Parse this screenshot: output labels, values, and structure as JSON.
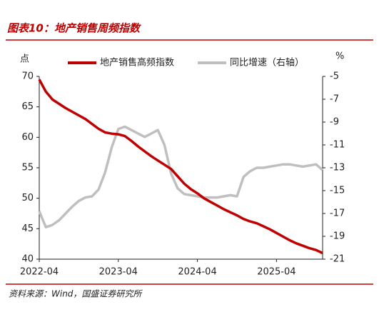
{
  "chart_data": {
    "type": "line",
    "title": "图表10：地产销售周频指数",
    "source": "资料来源：Wind，国盛证券研究所",
    "y_label": "点",
    "y2_label": "%",
    "x": [
      "2022-04",
      "2022-05",
      "2022-06",
      "2022-07",
      "2022-08",
      "2022-09",
      "2022-10",
      "2022-11",
      "2022-12",
      "2023-01",
      "2023-02",
      "2023-03",
      "2023-04",
      "2023-05",
      "2023-06",
      "2023-07",
      "2023-08",
      "2023-09",
      "2023-10",
      "2023-11",
      "2023-12",
      "2024-01",
      "2024-02",
      "2024-03",
      "2024-04",
      "2024-05",
      "2024-06",
      "2024-07",
      "2024-08",
      "2024-09",
      "2024-10",
      "2024-11",
      "2024-12",
      "2025-01",
      "2025-02",
      "2025-03",
      "2025-04",
      "2025-05",
      "2025-06",
      "2025-07",
      "2025-08",
      "2025-09",
      "2025-10",
      "2025-11"
    ],
    "xticks": [
      "2022-04",
      "2023-04",
      "2024-04",
      "2025-04"
    ],
    "ylim": [
      40,
      70
    ],
    "yticks": [
      40,
      45,
      50,
      55,
      60,
      65,
      70
    ],
    "y2lim": [
      -21,
      -5
    ],
    "y2ticks": [
      -21,
      -19,
      -17,
      -15,
      -13,
      -11,
      -9,
      -7,
      -5
    ],
    "series": [
      {
        "name": "地产销售高频指数",
        "color": "#c00000",
        "values": [
          69.5,
          67.5,
          66.2,
          65.5,
          64.8,
          64.2,
          63.6,
          63.0,
          62.2,
          61.4,
          60.8,
          60.6,
          60.5,
          60.2,
          59.4,
          58.5,
          57.7,
          56.9,
          56.2,
          55.5,
          54.8,
          53.6,
          52.4,
          51.5,
          50.8,
          50.0,
          49.4,
          48.8,
          48.2,
          47.7,
          47.2,
          46.6,
          46.2,
          45.9,
          45.4,
          44.9,
          44.3,
          43.7,
          43.1,
          42.6,
          42.2,
          41.8,
          41.5,
          41.0
        ]
      },
      {
        "name": "同比增速（右轴）",
        "color": "#bfbfbf",
        "axis": "y2",
        "values": [
          -16.8,
          -18.2,
          -18.0,
          -17.6,
          -17.0,
          -16.4,
          -15.9,
          -15.6,
          -15.5,
          -14.9,
          -13.4,
          -11.2,
          -9.6,
          -9.4,
          -9.7,
          -10.0,
          -10.3,
          -10.0,
          -9.7,
          -11.0,
          -13.5,
          -14.8,
          -15.3,
          -15.4,
          -15.5,
          -15.6,
          -15.6,
          -15.6,
          -15.5,
          -15.4,
          -15.5,
          -13.8,
          -13.3,
          -13.0,
          -13.0,
          -12.9,
          -12.8,
          -12.7,
          -12.7,
          -12.8,
          -12.9,
          -12.8,
          -12.7,
          -13.2
        ]
      }
    ]
  }
}
